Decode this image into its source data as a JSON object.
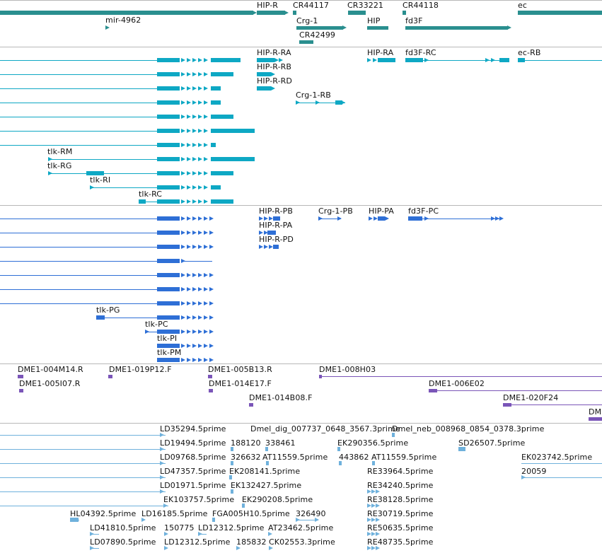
{
  "colors": {
    "gene": "#2a8f8f",
    "mrna": "#0ea8c4",
    "protein": "#2e6fd6",
    "clone": "#7a55b8",
    "est": "#6fb1dc",
    "divider": "#b8b8b8"
  },
  "genes": {
    "labels": [
      "HIP-R",
      "CR44117",
      "CR33221",
      "CR44118",
      "ec",
      "mir-4962",
      "Crg-1",
      "HIP",
      "fd3F",
      "CR42499"
    ]
  },
  "transcripts": {
    "labels": [
      "HIP-R-RA",
      "HIP-RA",
      "fd3F-RC",
      "ec-RB",
      "HIP-R-RB",
      "HIP-R-RD",
      "Crg-1-RB",
      "tlk-RM",
      "tlk-RG",
      "tlk-RI",
      "tlk-RC"
    ]
  },
  "proteins": {
    "labels": [
      "HIP-R-PB",
      "Crg-1-PB",
      "HIP-PA",
      "fd3F-PC",
      "HIP-R-PA",
      "HIP-R-PD",
      "tlk-PG",
      "tlk-PC",
      "tlk-PI",
      "tlk-PM"
    ]
  },
  "clones": {
    "labels": [
      "DME1-004M14.R",
      "DME1-019P12.F",
      "DME1-005B13.R",
      "DME1-008H03",
      "DME1-005I07.R",
      "DME1-014E17.F",
      "DME1-006E02",
      "DME1-014B08.F",
      "DME1-020F24",
      "DM"
    ]
  },
  "ests": {
    "labels": [
      "LD35294.5prime",
      "Dmel_dig_007737_0648_3567.3prime",
      "Dmel_neb_008968_0854_0378.3prime",
      "LD19494.5prime",
      "188120",
      "338461",
      "EK290356.5prime",
      "SD26507.5prime",
      "LD09768.5prime",
      "326632",
      "AT11559.5prime",
      "443862",
      "AT11559.5prime",
      "EK023742.5prime",
      "LD47357.5prime",
      "EK208141.5prime",
      "RE33964.5prime",
      "20059",
      "LD01971.5prime",
      "EK132427.5prime",
      "RE34240.5prime",
      "EK103757.5prime",
      "EK290208.5prime",
      "RE38128.5prime",
      "HL04392.5prime",
      "LD16185.5prime",
      "FGA005H10.5prime",
      "326490",
      "RE30719.5prime",
      "LD41810.5prime",
      "150775",
      "LD12312.5prime",
      "AT23462.5prime",
      "RE50635.5prime",
      "LD07890.5prime",
      "LD12312.5prime",
      "185832",
      "CK02553.3prime",
      "RE48735.5prime"
    ]
  }
}
